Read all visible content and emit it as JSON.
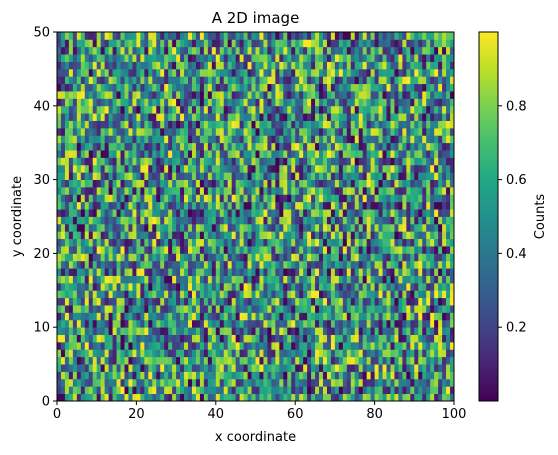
{
  "chart_data": {
    "type": "heatmap",
    "title": "A 2D image",
    "xlabel": "x coordinate",
    "ylabel": "y coordinate",
    "xlim": [
      0,
      100
    ],
    "ylim": [
      0,
      50
    ],
    "xticks": [
      0,
      20,
      40,
      60,
      80,
      100
    ],
    "yticks": [
      0,
      10,
      20,
      30,
      40,
      50
    ],
    "xtick_labels": [
      "0",
      "20",
      "40",
      "60",
      "80",
      "100"
    ],
    "ytick_labels": [
      "0",
      "10",
      "20",
      "30",
      "40",
      "50"
    ],
    "grid": false,
    "colormap": "viridis",
    "colorbar": {
      "label": "Counts",
      "vmin": 0.0,
      "vmax": 1.0,
      "ticks": [
        0.2,
        0.4,
        0.6,
        0.8
      ],
      "tick_labels": [
        "0.2",
        "0.4",
        "0.6",
        "0.8"
      ],
      "placement": "right"
    },
    "grid_shape": {
      "columns": 100,
      "rows": 50
    },
    "values_note": "uniform random values in [0, 1) per cell"
  }
}
